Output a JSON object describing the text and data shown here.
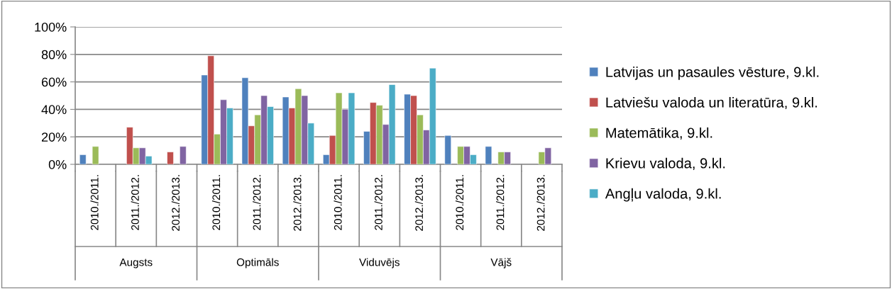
{
  "chart_data": {
    "type": "bar",
    "categories": [
      "2010./2011.",
      "2011./2012.",
      "2012./2013.",
      "2010./2011.",
      "2011./2012.",
      "2012./2013.",
      "2010./2011.",
      "2011./2012.",
      "2012./2013.",
      "2010./2011.",
      "2011./2012.",
      "2012./2013."
    ],
    "series": [
      {
        "name": "Latvijas un pasaules vēsture, 9.kl.",
        "color": "#4f81bd",
        "values": [
          7,
          null,
          null,
          65,
          63,
          49,
          7,
          24,
          51,
          21,
          13,
          null
        ]
      },
      {
        "name": "Latviešu valoda un literatūra, 9.kl.",
        "color": "#c0504d",
        "values": [
          null,
          27,
          9,
          79,
          28,
          41,
          21,
          45,
          50,
          null,
          null,
          null
        ]
      },
      {
        "name": "Matemātika, 9.kl.",
        "color": "#9bbb59",
        "values": [
          13,
          12,
          null,
          22,
          36,
          55,
          52,
          43,
          36,
          13,
          9,
          9
        ]
      },
      {
        "name": "Krievu valoda, 9.kl.",
        "color": "#8064a2",
        "values": [
          null,
          12,
          13,
          47,
          50,
          50,
          40,
          29,
          25,
          13,
          9,
          12
        ]
      },
      {
        "name": "Angļu valoda, 9.kl.",
        "color": "#4bacc6",
        "values": [
          null,
          6,
          null,
          41,
          42,
          30,
          52,
          58,
          70,
          7,
          null,
          null
        ]
      }
    ],
    "annotations": [
      "Augsts",
      "Optimāls",
      "Viduvējs",
      "Vājš"
    ],
    "ylim": [
      0,
      100
    ],
    "yticks": [
      {
        "value": 0,
        "label": "0%"
      },
      {
        "value": 20,
        "label": "20%"
      },
      {
        "value": 40,
        "label": "40%"
      },
      {
        "value": 60,
        "label": "60%"
      },
      {
        "value": 80,
        "label": "80%"
      },
      {
        "value": 100,
        "label": "100%"
      }
    ],
    "grid": "y",
    "legend": "right"
  }
}
